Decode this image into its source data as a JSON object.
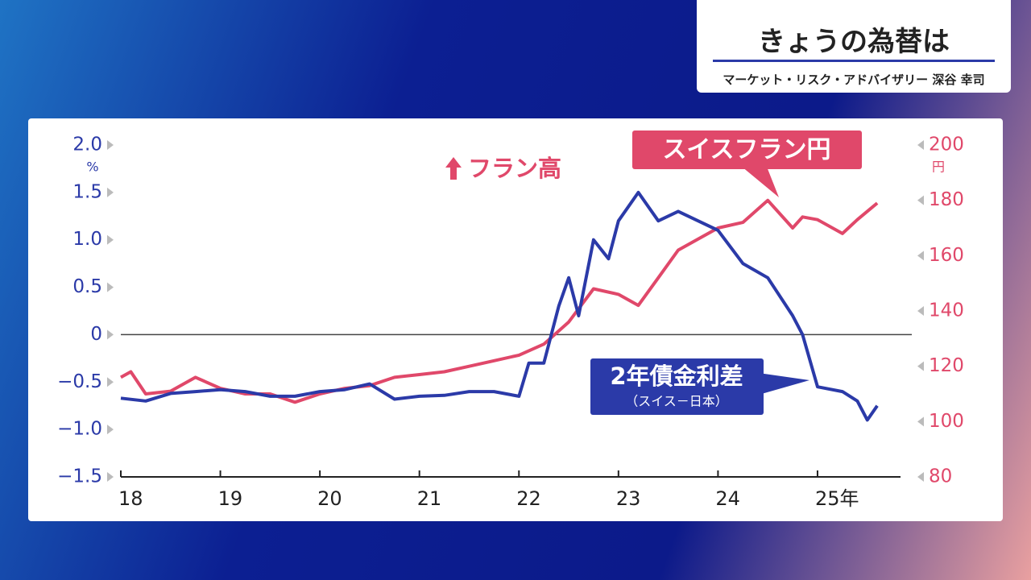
{
  "header": {
    "title": "きょうの為替は",
    "subtitle": "マーケット・リスク・アドバイザリー 深谷 幸司"
  },
  "chart_data": {
    "type": "line",
    "annotation": "フラン高",
    "y_unit": "%",
    "y2_unit": "円",
    "xlim": [
      18,
      25.85
    ],
    "xticks": [
      18,
      19,
      20,
      21,
      22,
      23,
      24,
      {
        "value": 25,
        "label": "25年"
      }
    ],
    "ylim": [
      -1.5,
      2.0
    ],
    "yticks": [
      {
        "value": -1.5,
        "label": "−1.5"
      },
      {
        "value": -1.0,
        "label": "−1.0"
      },
      {
        "value": -0.5,
        "label": "−0.5"
      },
      0,
      {
        "value": 0.5,
        "label": "0.5"
      },
      {
        "value": 1.0,
        "label": "1.0"
      },
      {
        "value": 1.5,
        "label": "1.5"
      },
      {
        "value": 2.0,
        "label": "2.0"
      }
    ],
    "y2lim": [
      80,
      200
    ],
    "y2ticks": [
      80,
      100,
      120,
      140,
      160,
      180,
      200
    ],
    "series": [
      {
        "name": "スイスフラン円",
        "color": "#e0486a",
        "axis": "y2",
        "x": [
          18.0,
          18.1,
          18.25,
          18.5,
          18.75,
          19.0,
          19.25,
          19.5,
          19.75,
          20.0,
          20.25,
          20.5,
          20.75,
          21.0,
          21.25,
          21.5,
          21.75,
          22.0,
          22.25,
          22.5,
          22.75,
          23.0,
          23.2,
          23.4,
          23.6,
          23.8,
          24.0,
          24.25,
          24.5,
          24.75,
          24.85,
          25.0,
          25.25,
          25.4,
          25.6
        ],
        "values": [
          116,
          118,
          110,
          111,
          116,
          112,
          110,
          110,
          107,
          110,
          112,
          113,
          116,
          117,
          118,
          120,
          122,
          124,
          128,
          136,
          148,
          146,
          142,
          152,
          162,
          166,
          170,
          172,
          180,
          170,
          174,
          173,
          168,
          173,
          179
        ]
      },
      {
        "name": "2年債金利差",
        "note": "（スイス－日本）",
        "color": "#2b3aa8",
        "axis": "y",
        "x": [
          18.0,
          18.25,
          18.5,
          18.75,
          19.0,
          19.25,
          19.5,
          19.75,
          20.0,
          20.25,
          20.5,
          20.75,
          21.0,
          21.25,
          21.5,
          21.75,
          22.0,
          22.1,
          22.25,
          22.4,
          22.5,
          22.6,
          22.75,
          22.9,
          23.0,
          23.2,
          23.4,
          23.6,
          23.8,
          24.0,
          24.25,
          24.5,
          24.75,
          24.85,
          25.0,
          25.25,
          25.4,
          25.5,
          25.6
        ],
        "values": [
          -0.67,
          -0.7,
          -0.62,
          -0.6,
          -0.58,
          -0.6,
          -0.65,
          -0.65,
          -0.6,
          -0.58,
          -0.52,
          -0.68,
          -0.65,
          -0.64,
          -0.6,
          -0.6,
          -0.65,
          -0.3,
          -0.3,
          0.3,
          0.6,
          0.2,
          1.0,
          0.8,
          1.2,
          1.5,
          1.2,
          1.3,
          1.2,
          1.1,
          0.75,
          0.6,
          0.2,
          0.0,
          -0.55,
          -0.6,
          -0.7,
          -0.9,
          -0.75
        ]
      }
    ]
  }
}
